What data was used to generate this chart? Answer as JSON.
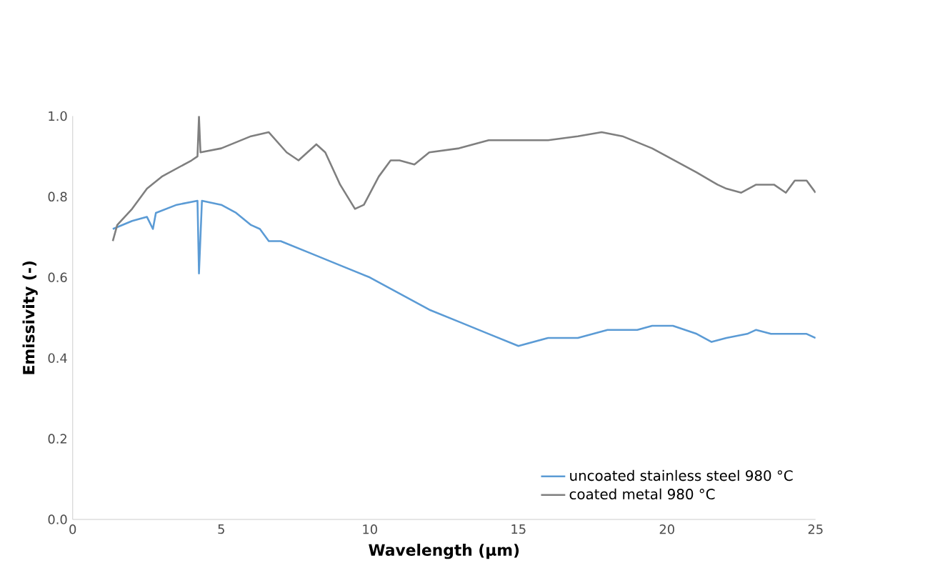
{
  "chart_data": {
    "type": "line",
    "xlabel": "Wavelength (µm)",
    "ylabel": "Emissivity (-)",
    "xlim": [
      0,
      25
    ],
    "xticks": [
      0,
      5,
      10,
      15,
      20,
      25
    ],
    "ylim": [
      0,
      1
    ],
    "yticks": [
      {
        "value": 0,
        "label": "0.0"
      },
      {
        "value": 0.2,
        "label": "0.2"
      },
      {
        "value": 0.4,
        "label": "0.4"
      },
      {
        "value": 0.6,
        "label": "0.6"
      },
      {
        "value": 0.8,
        "label": "0.8"
      },
      {
        "value": 1,
        "label": "1.0"
      }
    ],
    "grid": false,
    "legend": "bottom right",
    "marker": "none",
    "line_style": "solid",
    "series": [
      {
        "name": "uncoated stainless steel 980 °C",
        "color": "#5b9bd5",
        "x": [
          1.35,
          2,
          2.5,
          2.7,
          2.8,
          3.5,
          4.2,
          4.25,
          4.35,
          5,
          5.5,
          6,
          6.3,
          6.6,
          7,
          8,
          9,
          10,
          11,
          12,
          13,
          14,
          15,
          15.5,
          16,
          17,
          17.5,
          18,
          19,
          19.5,
          20.2,
          21,
          21.5,
          22,
          22.7,
          23,
          23.5,
          24,
          24.7,
          25
        ],
        "values": [
          0.72,
          0.74,
          0.75,
          0.72,
          0.76,
          0.78,
          0.79,
          0.61,
          0.79,
          0.78,
          0.76,
          0.73,
          0.72,
          0.69,
          0.69,
          0.66,
          0.63,
          0.6,
          0.56,
          0.52,
          0.49,
          0.46,
          0.43,
          0.44,
          0.45,
          0.45,
          0.46,
          0.47,
          0.47,
          0.48,
          0.48,
          0.46,
          0.44,
          0.45,
          0.46,
          0.47,
          0.46,
          0.46,
          0.46,
          0.45
        ]
      },
      {
        "name": "coated metal 980 °C",
        "color": "#7f7f7f",
        "x": [
          1.35,
          1.5,
          2,
          2.5,
          3,
          3.5,
          4,
          4.2,
          4.25,
          4.3,
          5,
          6,
          6.6,
          7.2,
          7.6,
          8.2,
          8.5,
          9,
          9.5,
          9.8,
          10.3,
          10.7,
          11,
          11.5,
          12,
          13,
          14,
          15,
          16,
          17,
          17.8,
          18.5,
          19.5,
          20.5,
          21,
          21.7,
          22,
          22.5,
          23,
          23.6,
          24,
          24.3,
          24.7,
          25
        ],
        "values": [
          0.69,
          0.73,
          0.77,
          0.82,
          0.85,
          0.87,
          0.89,
          0.9,
          1.0,
          0.91,
          0.92,
          0.95,
          0.96,
          0.91,
          0.89,
          0.93,
          0.91,
          0.83,
          0.77,
          0.78,
          0.85,
          0.89,
          0.89,
          0.88,
          0.91,
          0.92,
          0.94,
          0.94,
          0.94,
          0.95,
          0.96,
          0.95,
          0.92,
          0.88,
          0.86,
          0.83,
          0.82,
          0.81,
          0.83,
          0.83,
          0.81,
          0.84,
          0.84,
          0.81
        ]
      }
    ]
  }
}
